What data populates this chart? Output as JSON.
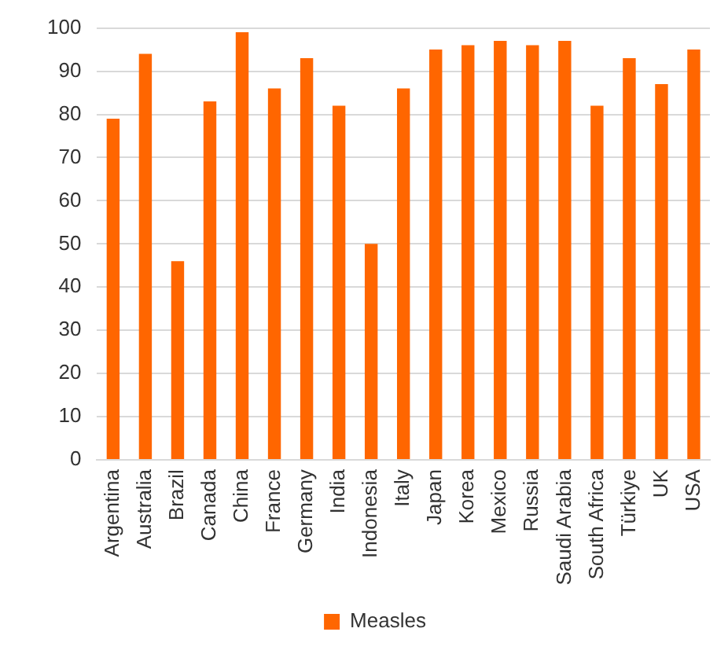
{
  "chart_data": {
    "type": "bar",
    "categories": [
      "Argentina",
      "Australia",
      "Brazil",
      "Canada",
      "China",
      "France",
      "Germany",
      "India",
      "Indonesia",
      "Italy",
      "Japan",
      "Korea",
      "Mexico",
      "Russia",
      "Saudi Arabia",
      "South Africa",
      "Türkiye",
      "UK",
      "USA"
    ],
    "series": [
      {
        "name": "Measles",
        "color": "#ff6600",
        "values": [
          79,
          94,
          46,
          83,
          99,
          86,
          93,
          82,
          50,
          86,
          95,
          96,
          97,
          96,
          97,
          82,
          93,
          87,
          95
        ]
      }
    ],
    "ylim": [
      0,
      100
    ],
    "yticks": [
      0,
      10,
      20,
      30,
      40,
      50,
      60,
      70,
      80,
      90,
      100
    ],
    "grid": "y",
    "legend": "bottom"
  }
}
